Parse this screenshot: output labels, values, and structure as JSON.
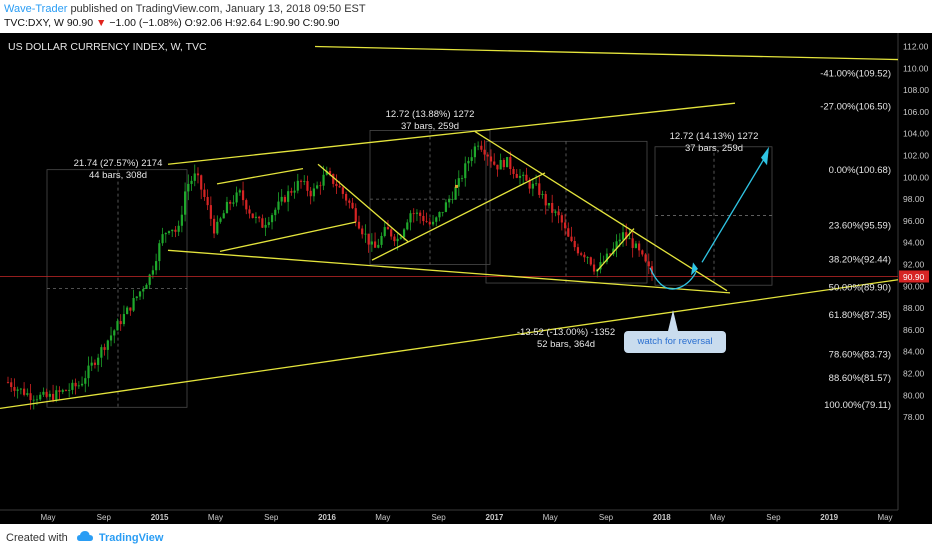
{
  "header": {
    "author": "Wave-Trader",
    "published": "published on TradingView.com, January 13, 2018 09:50 EST",
    "quote_prefix": "TVC:DXY, W",
    "last": "90.90",
    "change": "−1.00 (−1.08%)",
    "ohlc": "O:92.06 H:92.64 L:90.90 C:90.90"
  },
  "footer": {
    "created_with": "Created with",
    "brand": "TradingView"
  },
  "colors": {
    "background": "#000000",
    "up": "#1fa82c",
    "down": "#d62424",
    "trendline": "#e4e43c",
    "projection": "#2fc4e3",
    "price_line": "#c62828",
    "axis_text": "#c8c8c8"
  },
  "icons": {
    "brand_logo": "tradingview-cloud-icon"
  },
  "annotation": {
    "watch": "watch for reversal"
  },
  "chart_data": {
    "type": "candlestick",
    "title": "US DOLLAR CURRENCY INDEX, W, TVC",
    "interval": "W",
    "last_price": 90.9,
    "last_price_label": "90.90",
    "yticks": [
      "112.00",
      "110.00",
      "108.00",
      "106.00",
      "104.00",
      "102.00",
      "100.00",
      "98.00",
      "96.00",
      "94.00",
      "92.00",
      "90.00",
      "88.00",
      "86.00",
      "84.00",
      "82.00",
      "80.00",
      "78.00"
    ],
    "ylim": [
      77,
      113
    ],
    "xticks": [
      "May",
      "Sep",
      "2015",
      "May",
      "Sep",
      "2016",
      "May",
      "Sep",
      "2017",
      "May",
      "Sep",
      "2018",
      "May",
      "Sep",
      "2019",
      "May"
    ],
    "bold_xticks": [
      "2015",
      "2016",
      "2017",
      "2018",
      "2019"
    ],
    "ohlc_weekly_sample": [
      {
        "date": "2014-05",
        "close": 79.9
      },
      {
        "date": "2014-07",
        "close": 81.0
      },
      {
        "date": "2014-09",
        "close": 85.5
      },
      {
        "date": "2014-11",
        "close": 88.2
      },
      {
        "date": "2015-01",
        "close": 94.8
      },
      {
        "date": "2015-03",
        "close": 99.6
      },
      {
        "date": "2015-05",
        "close": 95.5
      },
      {
        "date": "2015-08",
        "close": 96.5
      },
      {
        "date": "2015-12",
        "close": 100.2
      },
      {
        "date": "2016-05",
        "close": 93.5
      },
      {
        "date": "2016-09",
        "close": 95.5
      },
      {
        "date": "2017-01",
        "close": 103.3
      },
      {
        "date": "2017-05",
        "close": 97.3
      },
      {
        "date": "2017-09",
        "close": 91.4
      },
      {
        "date": "2017-11",
        "close": 94.8
      },
      {
        "date": "2018-01",
        "close": 90.9
      }
    ],
    "fib_levels": [
      {
        "label": "-41.00%(109.52)",
        "value": 109.52
      },
      {
        "label": "-27.00%(106.50)",
        "value": 106.5
      },
      {
        "label": "0.00%(100.68)",
        "value": 100.68
      },
      {
        "label": "23.60%(95.59)",
        "value": 95.59
      },
      {
        "label": "38.20%(92.44)",
        "value": 92.44
      },
      {
        "label": "50.00%(89.90)",
        "value": 89.9
      },
      {
        "label": "61.80%(87.35)",
        "value": 87.35
      },
      {
        "label": "78.60%(83.73)",
        "value": 83.73
      },
      {
        "label": "88.60%(81.57)",
        "value": 81.57
      },
      {
        "label": "100.00%(79.11)",
        "value": 79.11
      }
    ],
    "measurements": [
      {
        "line1": "21.74 (27.57%) 2174",
        "line2": "44 bars, 308d"
      },
      {
        "line1": "12.72 (13.88%) 1272",
        "line2": "37 bars, 259d"
      },
      {
        "line1": "12.72 (14.13%) 1272",
        "line2": "37 bars, 259d"
      },
      {
        "line1": "-13.52 (-13.00%) -1352",
        "line2": "52 bars, 364d"
      }
    ]
  }
}
